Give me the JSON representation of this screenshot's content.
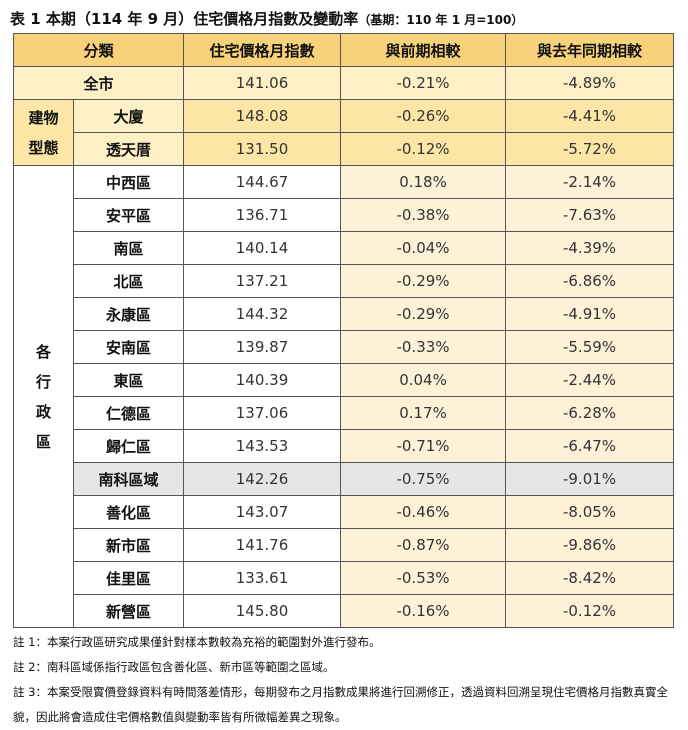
{
  "title": "表 1 本期（114 年 9 月）住宅價格月指數及變動率",
  "base_note": "（基期：110 年 1 月=100）",
  "table": {
    "header": [
      "分類",
      "住宅價格月指數",
      "與前期相較",
      "與去年同期相較"
    ],
    "total": [
      "全市",
      "141.06",
      "-0.21%",
      "-4.89%"
    ],
    "groups": [
      {
        "label": "建物型態",
        "rows": [
          [
            "大廈",
            "148.08",
            "-0.26%",
            "-4.41%"
          ],
          [
            "透天厝",
            "131.50",
            "-0.12%",
            "-5.72%"
          ]
        ]
      },
      {
        "label": "各行政區",
        "rows": [
          [
            "中西區",
            "144.67",
            "0.18%",
            "-2.14%"
          ],
          [
            "安平區",
            "136.71",
            "-0.38%",
            "-7.63%"
          ],
          [
            "南區",
            "140.14",
            "-0.04%",
            "-4.39%"
          ],
          [
            "北區",
            "137.21",
            "-0.29%",
            "-6.86%"
          ],
          [
            "永康區",
            "144.32",
            "-0.29%",
            "-4.91%"
          ],
          [
            "安南區",
            "139.87",
            "-0.33%",
            "-5.59%"
          ],
          [
            "東區",
            "140.39",
            "0.04%",
            "-2.44%"
          ],
          [
            "仁德區",
            "137.06",
            "0.17%",
            "-6.28%"
          ],
          [
            "歸仁區",
            "143.53",
            "-0.71%",
            "-6.47%"
          ],
          [
            "南科區域",
            "142.26",
            "-0.75%",
            "-9.01%"
          ],
          [
            "善化區",
            "143.07",
            "-0.46%",
            "-8.05%"
          ],
          [
            "新市區",
            "141.76",
            "-0.87%",
            "-9.86%"
          ],
          [
            "佳里區",
            "133.61",
            "-0.53%",
            "-8.42%"
          ],
          [
            "新營區",
            "145.80",
            "-0.16%",
            "-0.12%"
          ]
        ]
      }
    ]
  },
  "notes": [
    "註 1：本案行政區研究成果僅針對樣本數較為充裕的範圍對外進行發布。",
    "註 2：南科區域係指行政區包含善化區、新市區等範圍之區域。",
    "註 3：本案受限實價登錄資料有時間落差情形，每期發布之月指數成果將進行回溯修正，透過資料回溯呈現住宅價格月指數真實全貌，因此將會造成住宅價格數值與變動率皆有所微幅差異之現象。"
  ]
}
